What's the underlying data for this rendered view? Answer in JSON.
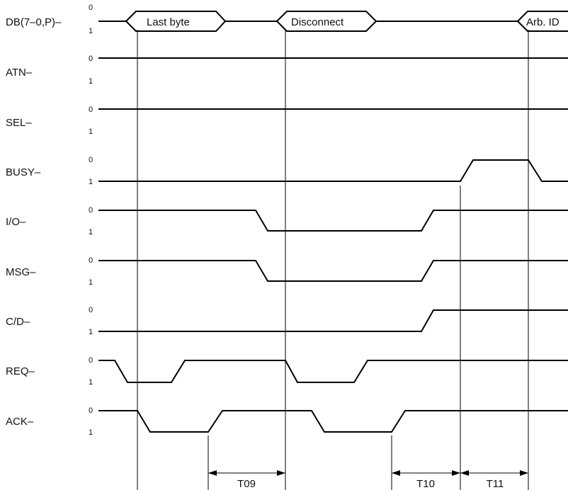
{
  "level_labels": {
    "asserted": "0",
    "negated": "1"
  },
  "signals": [
    {
      "name": "DB(7–0,P)–"
    },
    {
      "name": "ATN–"
    },
    {
      "name": "SEL–"
    },
    {
      "name": "BUSY–"
    },
    {
      "name": "I/O–"
    },
    {
      "name": "MSG–"
    },
    {
      "name": "C/D–"
    },
    {
      "name": "REQ–"
    },
    {
      "name": "ACK–"
    }
  ],
  "bus_values": [
    {
      "label": "Last byte"
    },
    {
      "label": "Disconnect"
    },
    {
      "label": "Arb. ID"
    }
  ],
  "timings": [
    {
      "label": "T09"
    },
    {
      "label": "T10"
    },
    {
      "label": "T11"
    }
  ]
}
